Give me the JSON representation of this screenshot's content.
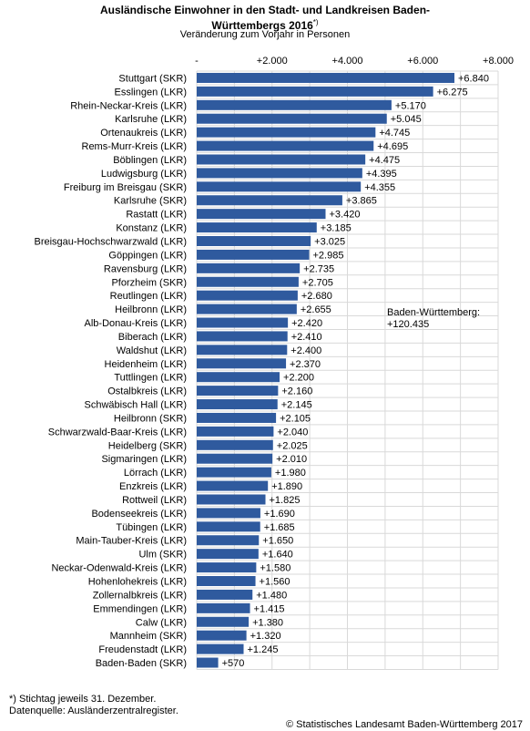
{
  "title_line1": "Ausländische Einwohner in den Stadt- und Landkreisen Baden-",
  "title_line2": "Württembergs 2016",
  "title_footnote_mark": "*)",
  "subtitle": "Veränderung zum Vorjahr in Personen",
  "annotation": {
    "line1": "Baden-Württemberg:",
    "line2": "+120.435"
  },
  "footnote1": "*) Stichtag jeweils 31. Dezember.",
  "footnote2": "Datenquelle: Ausländerzentralregister.",
  "copyright": "© Statistisches Landesamt Baden-Württemberg 2017",
  "colors": {
    "bar": "#2f5a9e",
    "grid": "#d9d9d9"
  },
  "chart_data": {
    "type": "bar",
    "orientation": "horizontal",
    "xlim": [
      0,
      8000
    ],
    "ticks": [
      0,
      2000,
      4000,
      6000,
      8000
    ],
    "tick_labels": [
      "-",
      "+2.000",
      "+4.000",
      "+6.000",
      "+8.000"
    ],
    "grid": true,
    "categories": [
      "Stuttgart (SKR)",
      "Esslingen (LKR)",
      "Rhein-Neckar-Kreis (LKR)",
      "Karlsruhe (LKR)",
      "Ortenaukreis (LKR)",
      "Rems-Murr-Kreis (LKR)",
      "Böblingen (LKR)",
      "Ludwigsburg (LKR)",
      "Freiburg im Breisgau (SKR)",
      "Karlsruhe (SKR)",
      "Rastatt (LKR)",
      "Konstanz (LKR)",
      "Breisgau-Hochschwarzwald (LKR)",
      "Göppingen (LKR)",
      "Ravensburg (LKR)",
      "Pforzheim (SKR)",
      "Reutlingen (LKR)",
      "Heilbronn (LKR)",
      "Alb-Donau-Kreis (LKR)",
      "Biberach (LKR)",
      "Waldshut (LKR)",
      "Heidenheim (LKR)",
      "Tuttlingen (LKR)",
      "Ostalbkreis (LKR)",
      "Schwäbisch Hall (LKR)",
      "Heilbronn (SKR)",
      "Schwarzwald-Baar-Kreis  (LKR)",
      "Heidelberg (SKR)",
      "Sigmaringen (LKR)",
      "Lörrach (LKR)",
      "Enzkreis (LKR)",
      "Rottweil (LKR)",
      "Bodenseekreis (LKR)",
      "Tübingen (LKR)",
      "Main-Tauber-Kreis (LKR)",
      "Ulm (SKR)",
      "Neckar-Odenwald-Kreis (LKR)",
      "Hohenlohekreis (LKR)",
      "Zollernalbkreis (LKR)",
      "Emmendingen (LKR)",
      "Calw (LKR)",
      "Mannheim (SKR)",
      "Freudenstadt (LKR)",
      "Baden-Baden (SKR)"
    ],
    "values": [
      6840,
      6275,
      5170,
      5045,
      4745,
      4695,
      4475,
      4395,
      4355,
      3865,
      3420,
      3185,
      3025,
      2985,
      2735,
      2705,
      2680,
      2655,
      2420,
      2410,
      2400,
      2370,
      2200,
      2160,
      2145,
      2105,
      2040,
      2025,
      2010,
      1980,
      1890,
      1825,
      1690,
      1685,
      1650,
      1640,
      1580,
      1560,
      1480,
      1415,
      1380,
      1320,
      1245,
      570
    ],
    "value_labels": [
      "+6.840",
      "+6.275",
      "+5.170",
      "+5.045",
      "+4.745",
      "+4.695",
      "+4.475",
      "+4.395",
      "+4.355",
      "+3.865",
      "+3.420",
      "+3.185",
      "+3.025",
      "+2.985",
      "+2.735",
      "+2.705",
      "+2.680",
      "+2.655",
      "+2.420",
      "+2.410",
      "+2.400",
      "+2.370",
      "+2.200",
      "+2.160",
      "+2.145",
      "+2.105",
      "+2.040",
      "+2.025",
      "+2.010",
      "+1.980",
      "+1.890",
      "+1.825",
      "+1.690",
      "+1.685",
      "+1.650",
      "+1.640",
      "+1.580",
      "+1.560",
      "+1.480",
      "+1.415",
      "+1.380",
      "+1.320",
      "+1.245",
      "+570"
    ]
  }
}
